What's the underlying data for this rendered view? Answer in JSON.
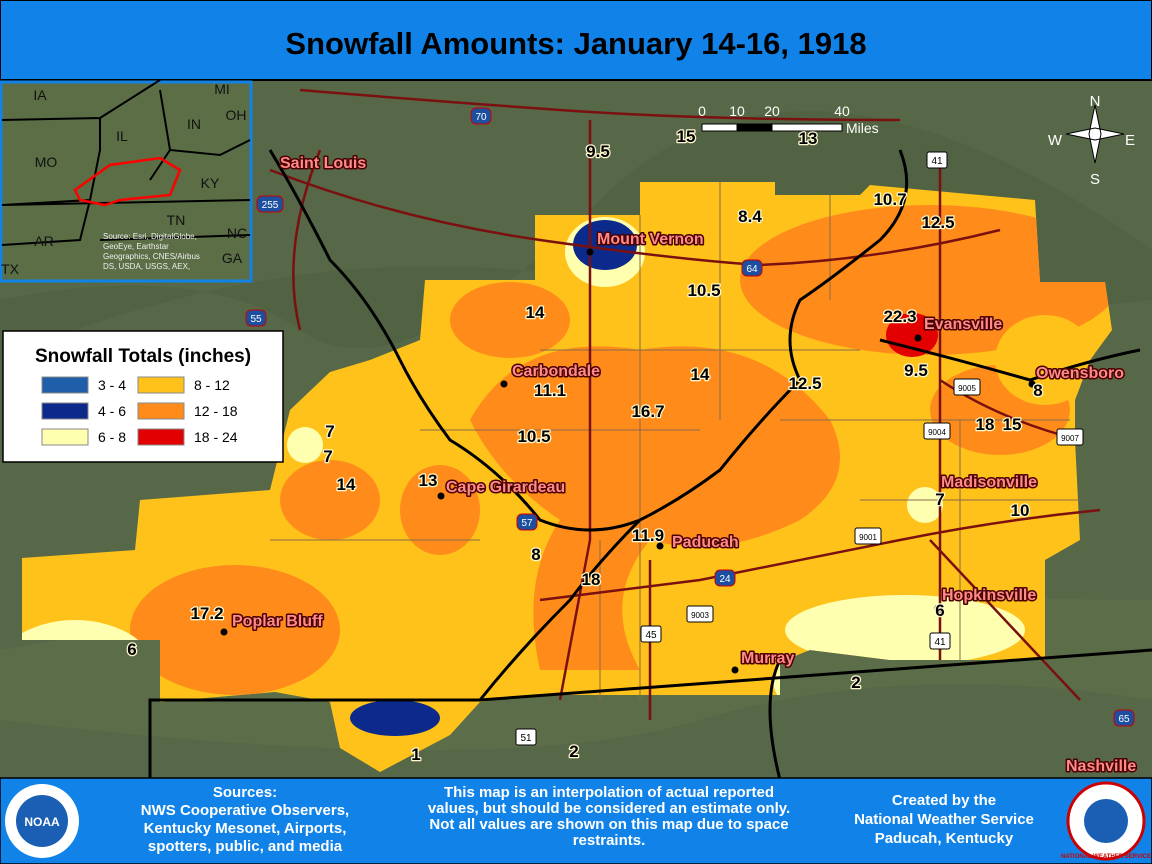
{
  "header": {
    "title": "Snowfall Amounts: January 14-16, 1918"
  },
  "inset": {
    "states": [
      "IA",
      "MI",
      "OH",
      "IL",
      "IN",
      "MO",
      "KY",
      "TN",
      "NC",
      "AR",
      "GA",
      "TX"
    ],
    "source": [
      "Source: Esri, DigitalGlobe,",
      "GeoEye, Earthstar",
      "Geographics, CNES/Airbus",
      "DS, USDA, USGS, AEX,"
    ]
  },
  "legend": {
    "title": "Snowfall Totals (inches)",
    "items": [
      "3 - 4",
      "4 - 6",
      "6 - 8",
      "8 - 12",
      "12 - 18",
      "18 - 24"
    ]
  },
  "scale": {
    "ticks": [
      0,
      10,
      20,
      40
    ],
    "unit": "Miles"
  },
  "compass": [
    "N",
    "E",
    "S",
    "W"
  ],
  "cities": [
    "Saint Louis",
    "Mount Vernon",
    "Carbondale",
    "Evansville",
    "Owensboro",
    "Cape Girardeau",
    "Madisonville",
    "Paducah",
    "Hopkinsville",
    "Poplar Bluff",
    "Murray",
    "Nashville"
  ],
  "observations": [
    9.5,
    15,
    13,
    10.7,
    12.5,
    8.4,
    10.5,
    14,
    22.3,
    11.1,
    14,
    12.5,
    9.5,
    8,
    18,
    15,
    7,
    7,
    16.7,
    10.5,
    14,
    13,
    7,
    10,
    11.9,
    8,
    18,
    17.2,
    6,
    6,
    2,
    1,
    2
  ],
  "highways": [
    "70",
    "255",
    "55",
    "64",
    "57",
    "24",
    "41",
    "9005",
    "9004",
    "9007",
    "9001",
    "9003",
    "45",
    "41",
    "51",
    "65"
  ],
  "footer": {
    "sources": [
      "Sources:",
      "NWS Cooperative Observers,",
      "Kentucky Mesonet, Airports,",
      "spotters, public, and media"
    ],
    "disclaimer": [
      "This map is an interpolation of actual reported",
      "values, but should be considered an estimate only.",
      "Not all values are shown on this map due to space",
      "restraints."
    ],
    "credit": [
      "Created by the",
      "National Weather Service",
      "Paducah, Kentucky"
    ],
    "logos": [
      "NOAA",
      "NATIONAL WEATHER SERVICE"
    ]
  }
}
